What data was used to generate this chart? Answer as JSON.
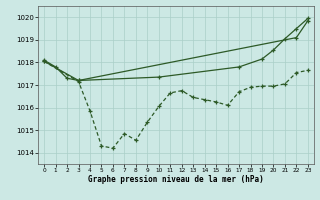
{
  "xlabel": "Graphe pression niveau de la mer (hPa)",
  "background_color": "#cce8e4",
  "grid_color": "#aacfc8",
  "line_color": "#2d5a27",
  "xlim": [
    -0.5,
    23.5
  ],
  "ylim": [
    1013.5,
    1020.5
  ],
  "yticks": [
    1014,
    1015,
    1016,
    1017,
    1018,
    1019,
    1020
  ],
  "xticks": [
    0,
    1,
    2,
    3,
    4,
    5,
    6,
    7,
    8,
    9,
    10,
    11,
    12,
    13,
    14,
    15,
    16,
    17,
    18,
    19,
    20,
    21,
    22,
    23
  ],
  "series1_x": [
    0,
    1,
    2,
    3,
    22,
    23
  ],
  "series1_y": [
    1018.1,
    1017.8,
    1017.3,
    1017.2,
    1019.1,
    1019.85
  ],
  "series2_x": [
    0,
    3,
    4,
    5,
    6,
    7,
    8,
    9,
    10,
    11,
    12,
    13,
    14,
    15,
    16,
    17,
    18,
    19,
    20,
    21,
    22,
    23
  ],
  "series2_y": [
    1018.05,
    1017.15,
    1015.85,
    1014.3,
    1014.2,
    1014.85,
    1014.55,
    1015.35,
    1016.05,
    1016.65,
    1016.75,
    1016.45,
    1016.35,
    1016.25,
    1016.1,
    1016.7,
    1016.9,
    1016.95,
    1016.95,
    1017.05,
    1017.55,
    1017.65
  ],
  "series3_x": [
    0,
    3,
    10,
    17,
    19,
    20,
    21,
    22,
    23
  ],
  "series3_y": [
    1018.05,
    1017.2,
    1017.35,
    1017.8,
    1018.15,
    1018.55,
    1019.05,
    1019.5,
    1019.95
  ]
}
